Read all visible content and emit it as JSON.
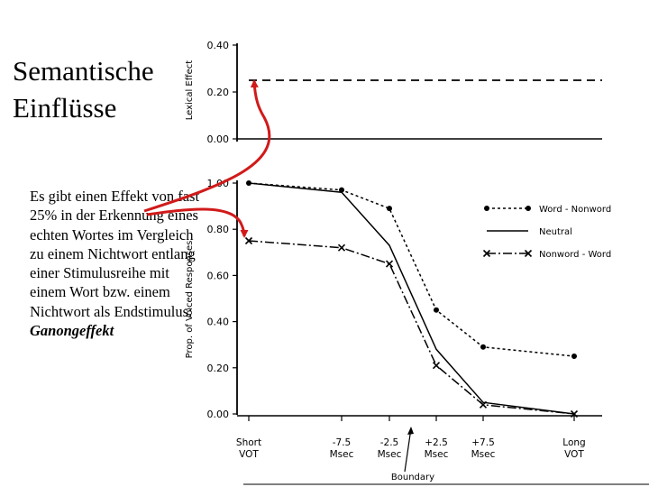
{
  "slide": {
    "title_line1": "Semantische",
    "title_line2": "Einflüsse",
    "body": "Es gibt einen Effekt von fast 25% in der Erkennung eines echten Wortes im Vergleich zu einem Nichtwort entlang einer Stimulusreihe mit einem Wort bzw. einem Nichtwort als Endstimulus:",
    "term": "Ganongeffekt"
  },
  "colors": {
    "ink": "#000000",
    "arrow": "#d11a1a"
  },
  "chart_data": [
    {
      "type": "line",
      "title": "",
      "ylabel": "Lexical Effect",
      "xlabel": "",
      "ylim": [
        0,
        0.4
      ],
      "yticks": [
        "0.40",
        "0.20",
        "0.00"
      ],
      "series": [
        {
          "name": "",
          "style": "dashed",
          "values": [
            0.25,
            0.25
          ]
        }
      ]
    },
    {
      "type": "line",
      "title": "",
      "ylabel": "Prop. of Voiced Responses",
      "xlabel": "Boundary",
      "ylim": [
        0,
        1
      ],
      "grid": false,
      "legend": "top-right",
      "yticks": [
        "1.00",
        "0.80",
        "0.60",
        "0.40",
        "0.20",
        "0.00"
      ],
      "categories": [
        [
          "Short",
          "VOT"
        ],
        [
          "-7.5",
          "Msec"
        ],
        [
          "-2.5",
          "Msec"
        ],
        [
          "+2.5",
          "Msec"
        ],
        [
          "+7.5",
          "Msec"
        ],
        [
          "Long",
          "VOT"
        ]
      ],
      "series": [
        {
          "name": "Word - Nonword",
          "style": "dotted-dot",
          "values": [
            1.0,
            0.97,
            0.89,
            0.45,
            0.29,
            0.25
          ]
        },
        {
          "name": "Neutral",
          "style": "solid",
          "values": [
            1.0,
            0.96,
            0.73,
            0.28,
            0.05,
            0.0
          ]
        },
        {
          "name": "Nonword - Word",
          "style": "dashdot-x",
          "values": [
            0.75,
            0.72,
            0.65,
            0.21,
            0.04,
            0.0
          ]
        }
      ]
    }
  ]
}
